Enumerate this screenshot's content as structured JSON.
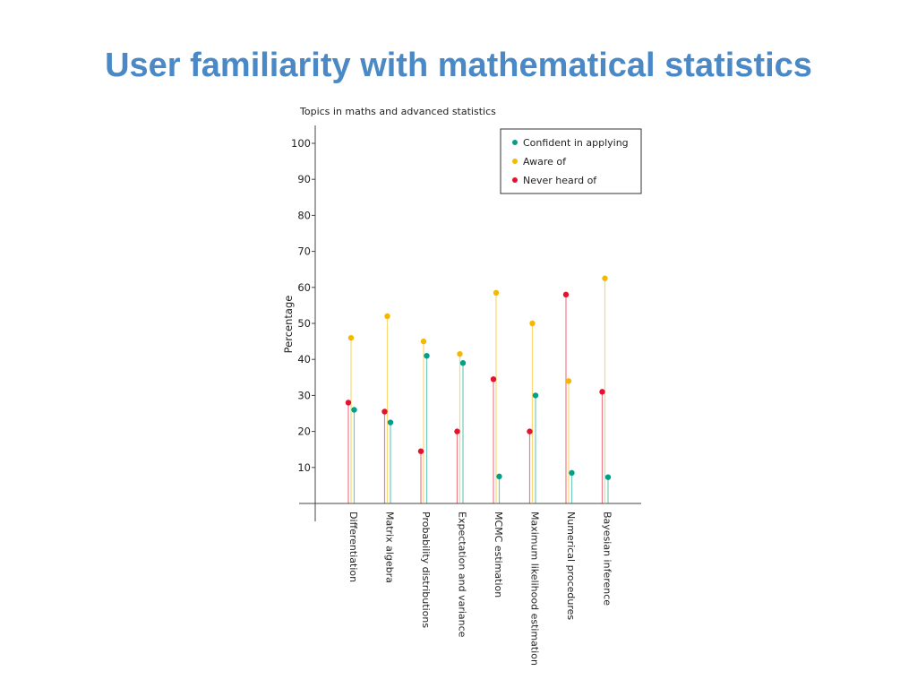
{
  "slide": {
    "title": "User familiarity with mathematical statistics"
  },
  "chart_data": {
    "type": "scatter",
    "subtitle": "Topics in maths and advanced statistics",
    "ylabel": "Percentage",
    "xlabel": "",
    "ylim": [
      0,
      100
    ],
    "yticks": [
      10,
      20,
      30,
      40,
      50,
      60,
      70,
      80,
      90,
      100
    ],
    "legend_position": "top-right",
    "categories": [
      "Differentiation",
      "Matrix algebra",
      "Probability distributions",
      "Expectation and variance",
      "MCMC estimation",
      "Maximum likelihood estimation",
      "Numerical procedures",
      "Bayesian inference"
    ],
    "series": [
      {
        "name": "Confident in applying",
        "color": "#00a08a",
        "values": [
          26,
          22.5,
          41,
          39,
          7.5,
          30,
          8.5,
          7.3
        ]
      },
      {
        "name": "Aware of",
        "color": "#f5b800",
        "values": [
          46,
          52,
          45,
          41.5,
          58.5,
          50,
          34,
          62.5
        ]
      },
      {
        "name": "Never heard of",
        "color": "#e8112d",
        "values": [
          28,
          25.5,
          14.5,
          20,
          34.5,
          20,
          58,
          31
        ]
      }
    ]
  }
}
